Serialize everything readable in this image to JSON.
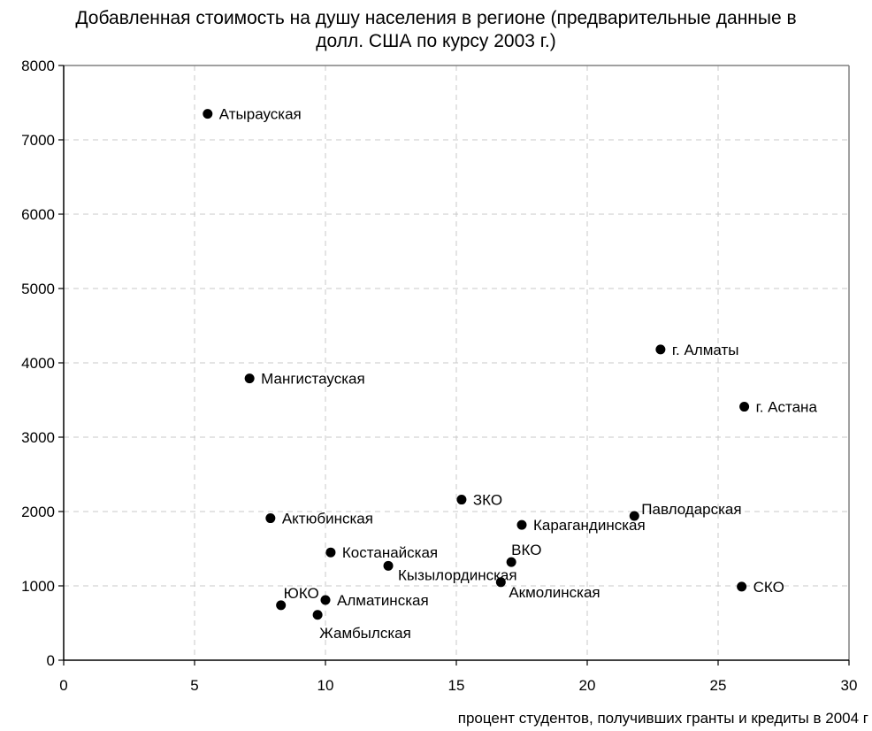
{
  "chart_data": {
    "type": "scatter",
    "title_lines": [
      "Добавленная стоимость на душу населения в регионе (предварительные данные в",
      "долл. США по курсу 2003 г.)"
    ],
    "xlabel": "процент студентов, получивших гранты и кредиты в 2004 г",
    "ylabel": "",
    "xlim": [
      0,
      30
    ],
    "ylim": [
      0,
      8000
    ],
    "xticks": [
      0,
      5,
      10,
      15,
      20,
      25,
      30
    ],
    "yticks": [
      0,
      1000,
      2000,
      3000,
      4000,
      5000,
      6000,
      7000,
      8000
    ],
    "grid": true,
    "legend": "none",
    "marker_color": "#000000",
    "points": [
      {
        "label": "Атырауская",
        "x": 5.5,
        "y": 7350,
        "label_pos": "right"
      },
      {
        "label": "Мангистауская",
        "x": 7.1,
        "y": 3790,
        "label_pos": "right"
      },
      {
        "label": "г. Алматы",
        "x": 22.8,
        "y": 4180,
        "label_pos": "right"
      },
      {
        "label": "г. Астана",
        "x": 26.0,
        "y": 3410,
        "label_pos": "right"
      },
      {
        "label": "ЗКО",
        "x": 15.2,
        "y": 2160,
        "label_pos": "right"
      },
      {
        "label": "Павлодарская",
        "x": 21.8,
        "y": 1940,
        "label_pos": "right-up"
      },
      {
        "label": "Актюбинская",
        "x": 7.9,
        "y": 1910,
        "label_pos": "right"
      },
      {
        "label": "Карагандинская",
        "x": 17.5,
        "y": 1820,
        "label_pos": "right"
      },
      {
        "label": "Костанайская",
        "x": 10.2,
        "y": 1450,
        "label_pos": "right"
      },
      {
        "label": "ВКО",
        "x": 17.1,
        "y": 1320,
        "label_pos": "above"
      },
      {
        "label": "Кызылординская",
        "x": 12.4,
        "y": 1270,
        "label_pos": "right-down"
      },
      {
        "label": "Акмолинская",
        "x": 16.7,
        "y": 1050,
        "label_pos": "below-right"
      },
      {
        "label": "СКО",
        "x": 25.9,
        "y": 990,
        "label_pos": "right"
      },
      {
        "label": "Алматинская",
        "x": 10.0,
        "y": 810,
        "label_pos": "right"
      },
      {
        "label": "ЮКО",
        "x": 8.3,
        "y": 740,
        "label_pos": "above-right"
      },
      {
        "label": "Жамбылская",
        "x": 9.7,
        "y": 610,
        "label_pos": "below"
      }
    ]
  }
}
